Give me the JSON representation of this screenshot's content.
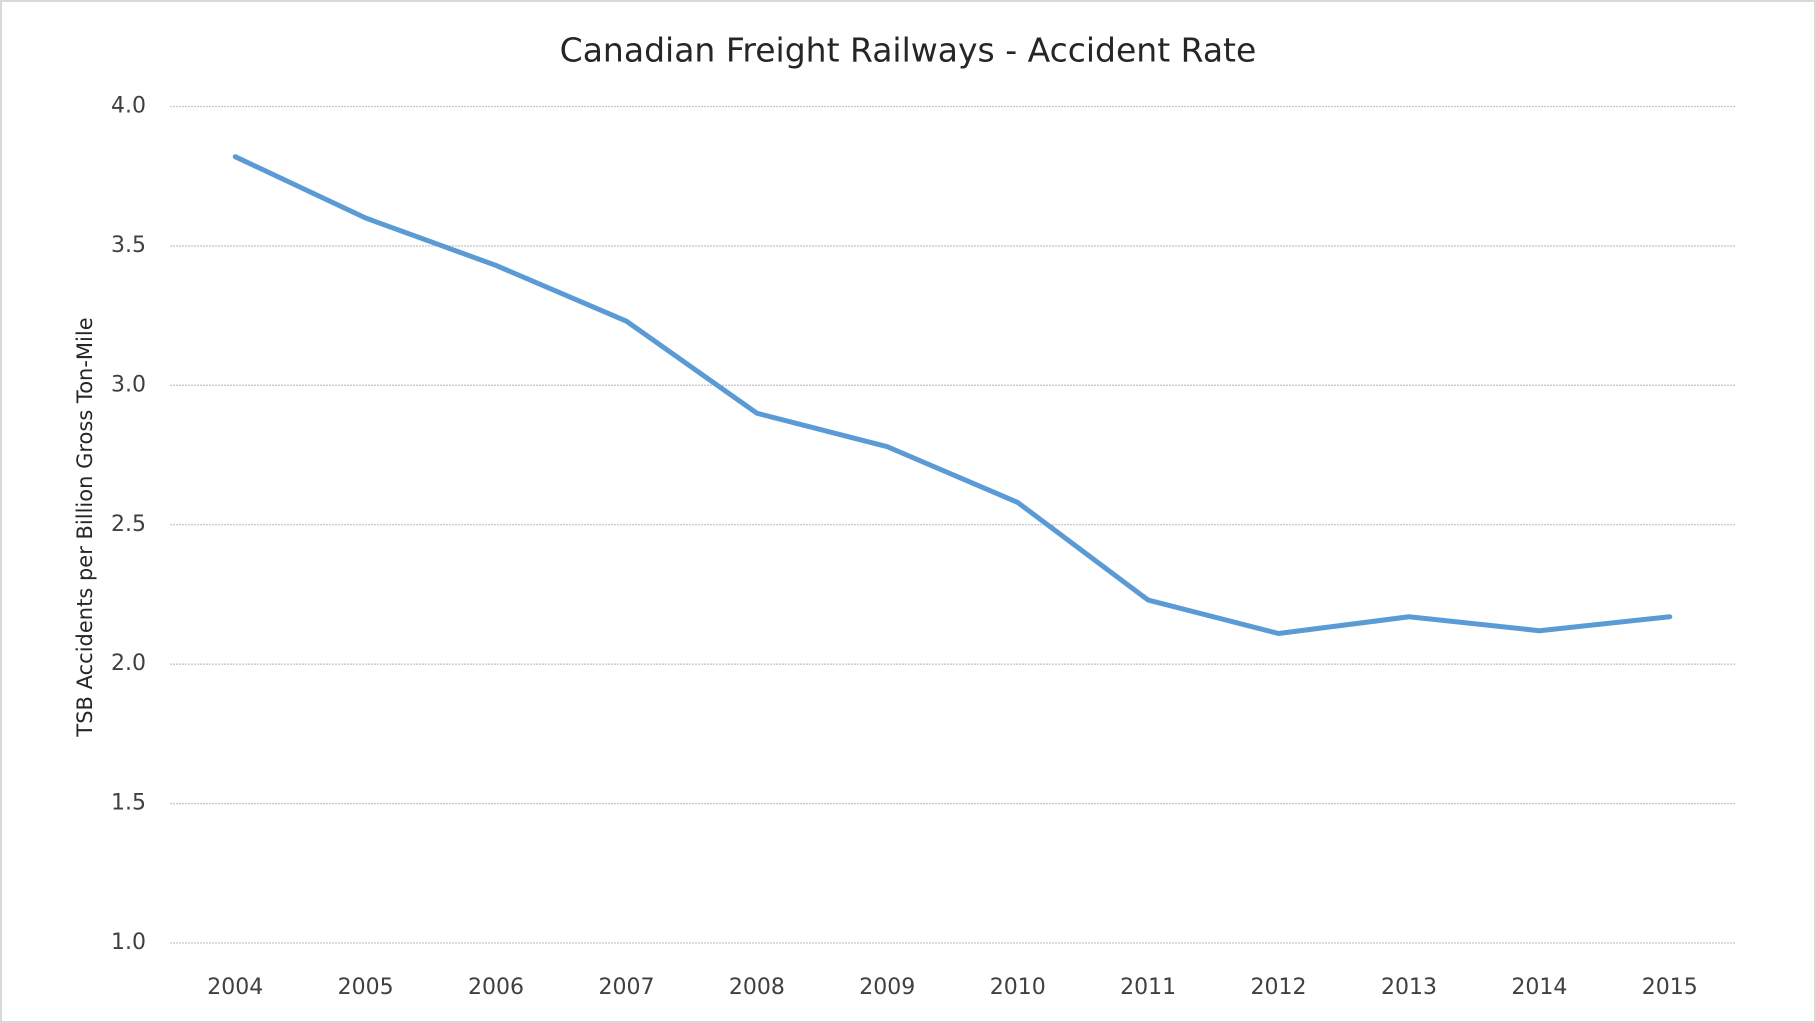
{
  "chart_data": {
    "type": "line",
    "title": "Canadian Freight Railways - Accident Rate",
    "y_label": "TSB Accidents per Billion Gross Ton-Mile",
    "categories": [
      "2004",
      "2005",
      "2006",
      "2007",
      "2008",
      "2009",
      "2010",
      "2011",
      "2012",
      "2013",
      "2014",
      "2015"
    ],
    "series": [
      {
        "color": "#5b9bd5",
        "values": [
          3.82,
          3.6,
          3.43,
          3.23,
          2.9,
          2.78,
          2.58,
          2.23,
          2.11,
          2.17,
          2.12,
          2.17
        ]
      }
    ],
    "ylim": [
      1,
      4
    ],
    "yticks": [
      {
        "value": 1,
        "label": "1.0"
      },
      1.5,
      {
        "value": 2,
        "label": "2.0"
      },
      2.5,
      {
        "value": 3,
        "label": "3.0"
      },
      3.5,
      {
        "value": 4,
        "label": "4.0"
      }
    ],
    "grid": true
  }
}
